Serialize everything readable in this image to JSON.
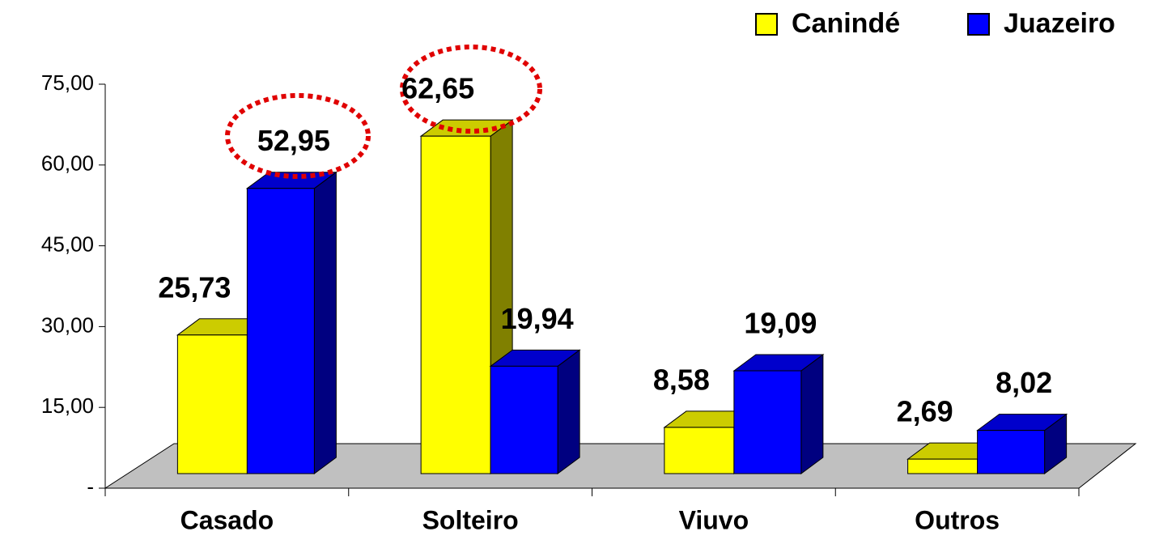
{
  "chart_data": {
    "type": "bar3d",
    "categories": [
      "Casado",
      "Solteiro",
      "Viuvo",
      "Outros"
    ],
    "series": [
      {
        "name": "Canindé",
        "color": "#ffff00",
        "values": [
          25.73,
          62.65,
          8.58,
          2.69
        ],
        "value_labels": [
          "25,73",
          "62,65",
          "8,58",
          "2,69"
        ]
      },
      {
        "name": "Juazeiro",
        "color": "#0000ff",
        "values": [
          52.95,
          19.94,
          19.09,
          8.02
        ],
        "value_labels": [
          "52,95",
          "19,94",
          "19,09",
          "8,02"
        ]
      }
    ],
    "ylim": [
      0,
      75
    ],
    "yticks": [
      {
        "value": 0,
        "label": "-"
      },
      {
        "value": 15,
        "label": "15,00"
      },
      {
        "value": 30,
        "label": "30,00"
      },
      {
        "value": 45,
        "label": "45,00"
      },
      {
        "value": 60,
        "label": "60,00"
      },
      {
        "value": 75,
        "label": "75,00"
      }
    ],
    "legend": "top-right"
  }
}
